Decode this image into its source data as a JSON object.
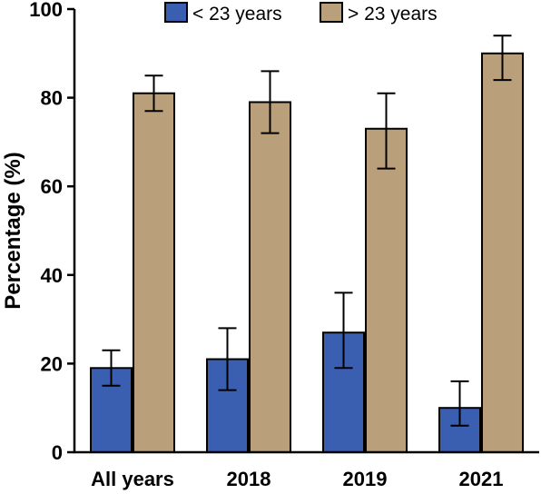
{
  "chart_data": {
    "type": "bar",
    "title": "",
    "xlabel": "",
    "ylabel": "Percentage (%)",
    "ylim": [
      0,
      100
    ],
    "yticks": [
      0,
      20,
      40,
      60,
      80,
      100
    ],
    "grid": false,
    "legend": "top-right",
    "categories": [
      "All years",
      "2018",
      "2019",
      "2021"
    ],
    "series": [
      {
        "name": "< 23 years",
        "color": "#3a5fb0",
        "values": [
          19,
          21,
          27,
          10
        ],
        "error_low": [
          15,
          14,
          19,
          6
        ],
        "error_high": [
          23,
          28,
          36,
          16
        ]
      },
      {
        "name": "> 23 years",
        "color": "#b9a07a",
        "values": [
          81,
          79,
          73,
          90
        ],
        "error_low": [
          77,
          72,
          64,
          84
        ],
        "error_high": [
          85,
          86,
          81,
          94
        ]
      }
    ]
  }
}
